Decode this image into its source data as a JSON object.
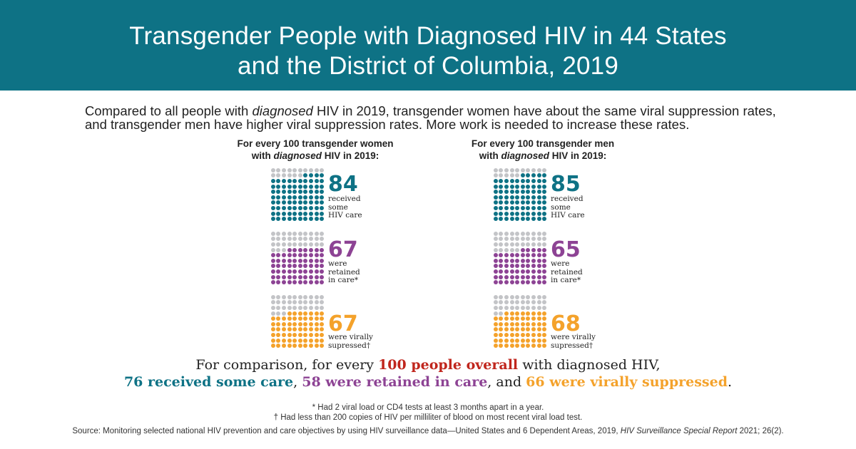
{
  "title": {
    "line1": "Transgender People with Diagnosed HIV in 44 States",
    "line2": "and the District of Columbia, 2019"
  },
  "intro": {
    "part1": "Compared to all people with ",
    "italic": "diagnosed",
    "part2": " HIV in 2019, transgender women have about the same viral suppression rates,",
    "line2": "and transgender men have higher viral suppression rates. More work is needed to increase these rates."
  },
  "colors": {
    "teal": "#0e7285",
    "purple": "#8d4394",
    "orange": "#f4a22b",
    "gray": "#c3c4c7",
    "red": "#c0261d",
    "banner": "#0e7285"
  },
  "chart_data": {
    "type": "table",
    "total_per_group": 100,
    "columns": [
      {
        "head_line1": "For every 100 transgender women",
        "head_line2_pre": "with ",
        "head_line2_italic": "diagnosed",
        "head_line2_post": " HIV in 2019:",
        "stats": [
          {
            "value": 84,
            "label_lines": [
              "received",
              "some",
              "HIV care"
            ],
            "color": "#0e7285"
          },
          {
            "value": 67,
            "label_lines": [
              "were",
              "retained",
              "in care*"
            ],
            "color": "#8d4394"
          },
          {
            "value": 67,
            "label_lines": [
              "were virally",
              "supressed†"
            ],
            "color": "#f4a22b"
          }
        ]
      },
      {
        "head_line1": "For every 100 transgender men",
        "head_line2_pre": "with ",
        "head_line2_italic": "diagnosed",
        "head_line2_post": " HIV in 2019:",
        "stats": [
          {
            "value": 85,
            "label_lines": [
              "received",
              "some",
              "HIV care"
            ],
            "color": "#0e7285"
          },
          {
            "value": 65,
            "label_lines": [
              "were",
              "retained",
              "in care*"
            ],
            "color": "#8d4394"
          },
          {
            "value": 68,
            "label_lines": [
              "were virally",
              "supressed†"
            ],
            "color": "#f4a22b"
          }
        ]
      }
    ]
  },
  "comparison": {
    "l1_pre": "For comparison, for every ",
    "l1_bold": "100 people overall",
    "l1_post": " with diagnosed HIV,",
    "care": "76 received some care",
    "sep1": ", ",
    "retained": "58 were retained in care",
    "sep2": ", and ",
    "suppressed": "66 were virally suppressed",
    "end": "."
  },
  "footnotes": {
    "star": "* Had 2 viral load or CD4 tests at least 3 months apart in a year.",
    "dagger": "† Had less than 200 copies of HIV per milliliter of blood on most recent viral load test."
  },
  "source": {
    "text": "Source: Monitoring selected national HIV prevention and care objectives by using HIV surveillance data—United States and 6 Dependent Areas, 2019, ",
    "italic": "HIV Surveillance Special Report",
    "end": " 2021; 26(2)."
  }
}
